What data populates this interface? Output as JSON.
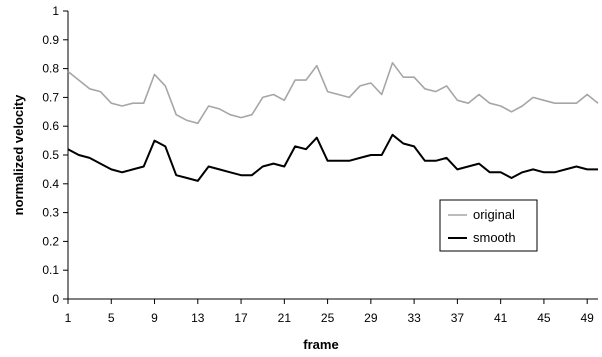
{
  "chart_data": {
    "type": "line",
    "title": "",
    "xlabel": "frame",
    "ylabel": "normalized velocity",
    "x": [
      1,
      2,
      3,
      4,
      5,
      6,
      7,
      8,
      9,
      10,
      11,
      12,
      13,
      14,
      15,
      16,
      17,
      18,
      19,
      20,
      21,
      22,
      23,
      24,
      25,
      26,
      27,
      28,
      29,
      30,
      31,
      32,
      33,
      34,
      35,
      36,
      37,
      38,
      39,
      40,
      41,
      42,
      43,
      44,
      45,
      46,
      47,
      48,
      49,
      50
    ],
    "xlim": [
      1,
      50
    ],
    "xticks": [
      1,
      5,
      9,
      13,
      17,
      21,
      25,
      29,
      33,
      37,
      41,
      45,
      49
    ],
    "ylim": [
      0,
      1
    ],
    "yticks": [
      0,
      0.1,
      0.2,
      0.3,
      0.4,
      0.5,
      0.6,
      0.7,
      0.8,
      0.9,
      1
    ],
    "ytick_labels": [
      "0",
      "0.1",
      "0.2",
      "0.3",
      "0.4",
      "0.5",
      "0.6",
      "0.7",
      "0.8",
      "0.9",
      "1"
    ],
    "grid": false,
    "legend_position": "center-right",
    "series": [
      {
        "name": "original",
        "color": "#a6a6a6",
        "values": [
          0.79,
          0.76,
          0.73,
          0.72,
          0.68,
          0.67,
          0.68,
          0.68,
          0.78,
          0.74,
          0.64,
          0.62,
          0.61,
          0.67,
          0.66,
          0.64,
          0.63,
          0.64,
          0.7,
          0.71,
          0.69,
          0.76,
          0.76,
          0.81,
          0.72,
          0.71,
          0.7,
          0.74,
          0.75,
          0.71,
          0.82,
          0.77,
          0.77,
          0.73,
          0.72,
          0.74,
          0.69,
          0.68,
          0.71,
          0.68,
          0.67,
          0.65,
          0.67,
          0.7,
          0.69,
          0.68,
          0.68,
          0.68,
          0.71,
          0.68
        ]
      },
      {
        "name": "smooth",
        "color": "#000000",
        "values": [
          0.52,
          0.5,
          0.49,
          0.47,
          0.45,
          0.44,
          0.45,
          0.46,
          0.55,
          0.53,
          0.43,
          0.42,
          0.41,
          0.46,
          0.45,
          0.44,
          0.43,
          0.43,
          0.46,
          0.47,
          0.46,
          0.53,
          0.52,
          0.56,
          0.48,
          0.48,
          0.48,
          0.49,
          0.5,
          0.5,
          0.57,
          0.54,
          0.53,
          0.48,
          0.48,
          0.49,
          0.45,
          0.46,
          0.47,
          0.44,
          0.44,
          0.42,
          0.44,
          0.45,
          0.44,
          0.44,
          0.45,
          0.46,
          0.45,
          0.45
        ]
      }
    ]
  }
}
